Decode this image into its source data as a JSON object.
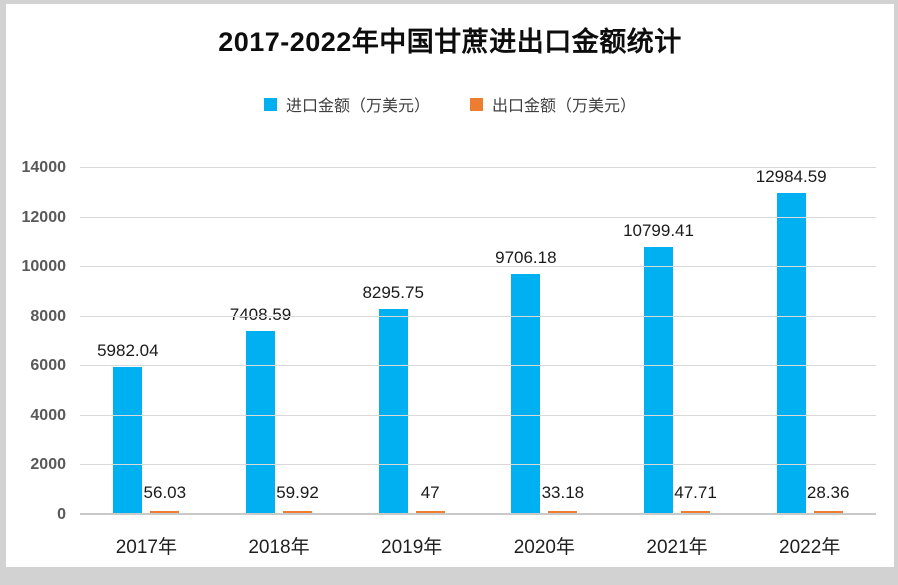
{
  "page": {
    "background_color": "#d2d2d2",
    "card_color": "#ffffff"
  },
  "title": "2017-2022年中国甘蔗进出口金额统计",
  "legend": [
    {
      "label": "进口金额（万美元）",
      "color": "#00B0F0"
    },
    {
      "label": "出口金额（万美元）",
      "color": "#ED7D31"
    }
  ],
  "chart_data": {
    "type": "bar",
    "title": "2017-2022年中国甘蔗进出口金额统计",
    "categories": [
      "2017年",
      "2018年",
      "2019年",
      "2020年",
      "2021年",
      "2022年"
    ],
    "series": [
      {
        "name": "进口金额（万美元）",
        "color": "#00B0F0",
        "values": [
          5982.04,
          7408.59,
          8295.75,
          9706.18,
          10799.41,
          12984.59
        ]
      },
      {
        "name": "出口金额（万美元）",
        "color": "#ED7D31",
        "values": [
          56.03,
          59.92,
          47,
          33.18,
          47.71,
          28.36
        ]
      }
    ],
    "xlabel": "",
    "ylabel": "",
    "ylim": [
      0,
      14000
    ],
    "ytick_step": 2000,
    "grid": true,
    "legend_position": "top",
    "data_labels": true
  }
}
